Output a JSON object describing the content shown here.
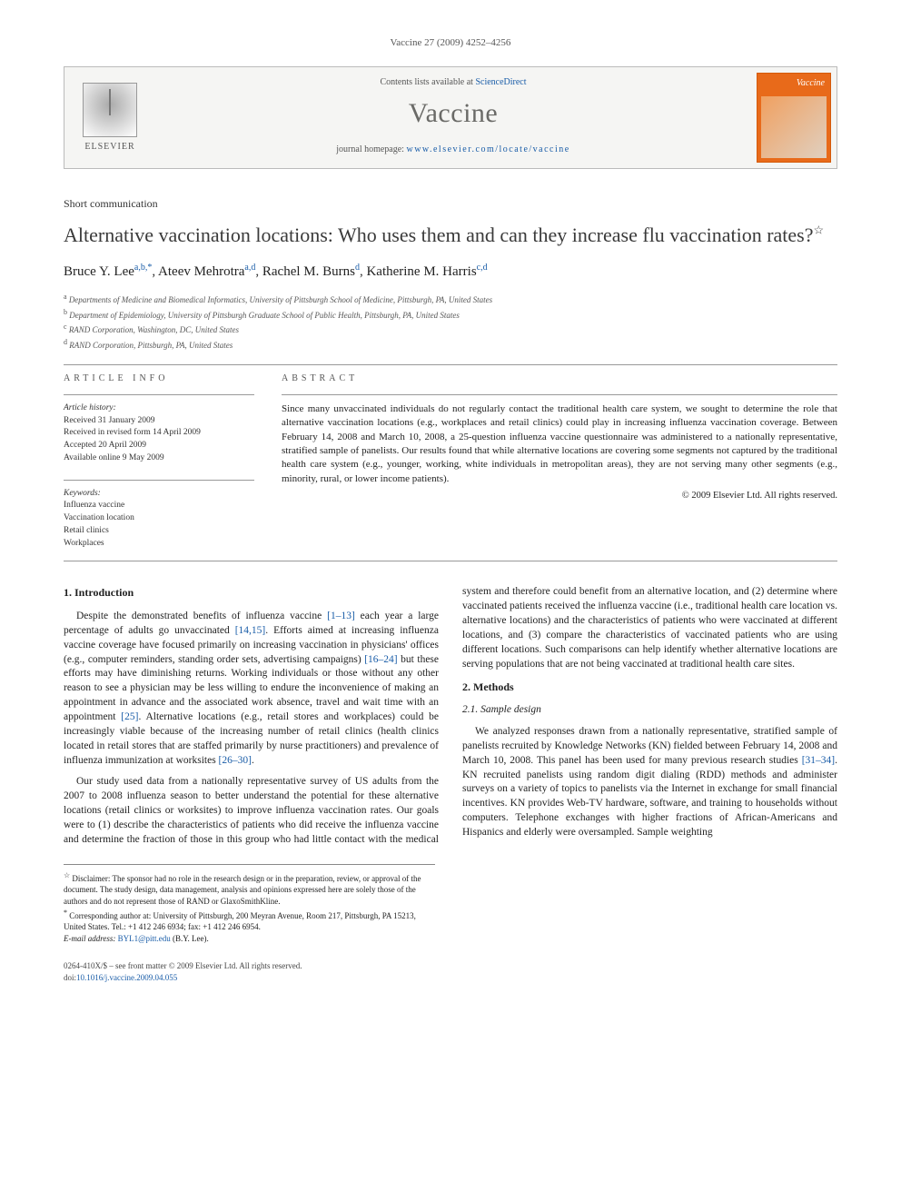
{
  "header": {
    "citation": "Vaccine 27 (2009) 4252–4256"
  },
  "journal_box": {
    "publisher": "ELSEVIER",
    "availability_prefix": "Contents lists available at ",
    "availability_link": "ScienceDirect",
    "journal_name": "Vaccine",
    "homepage_prefix": "journal homepage: ",
    "homepage_url": "www.elsevier.com/locate/vaccine",
    "cover_label": "Vaccine"
  },
  "article": {
    "type": "Short communication",
    "title": "Alternative vaccination locations: Who uses them and can they increase flu vaccination rates?",
    "title_footnote_mark": "☆",
    "authors": [
      {
        "name": "Bruce Y. Lee",
        "aff": "a,b,",
        "corr": "*"
      },
      {
        "name": "Ateev Mehrotra",
        "aff": "a,d"
      },
      {
        "name": "Rachel M. Burns",
        "aff": "d"
      },
      {
        "name": "Katherine M. Harris",
        "aff": "c,d"
      }
    ],
    "affiliations": [
      {
        "sup": "a",
        "text": "Departments of Medicine and Biomedical Informatics, University of Pittsburgh School of Medicine, Pittsburgh, PA, United States"
      },
      {
        "sup": "b",
        "text": "Department of Epidemiology, University of Pittsburgh Graduate School of Public Health, Pittsburgh, PA, United States"
      },
      {
        "sup": "c",
        "text": "RAND Corporation, Washington, DC, United States"
      },
      {
        "sup": "d",
        "text": "RAND Corporation, Pittsburgh, PA, United States"
      }
    ]
  },
  "info": {
    "label": "article info",
    "history_label": "Article history:",
    "history": [
      "Received 31 January 2009",
      "Received in revised form 14 April 2009",
      "Accepted 20 April 2009",
      "Available online 9 May 2009"
    ],
    "keywords_label": "Keywords:",
    "keywords": [
      "Influenza vaccine",
      "Vaccination location",
      "Retail clinics",
      "Workplaces"
    ]
  },
  "abstract": {
    "label": "abstract",
    "text": "Since many unvaccinated individuals do not regularly contact the traditional health care system, we sought to determine the role that alternative vaccination locations (e.g., workplaces and retail clinics) could play in increasing influenza vaccination coverage. Between February 14, 2008 and March 10, 2008, a 25-question influenza vaccine questionnaire was administered to a nationally representative, stratified sample of panelists. Our results found that while alternative locations are covering some segments not captured by the traditional health care system (e.g., younger, working, white individuals in metropolitan areas), they are not serving many other segments (e.g., minority, rural, or lower income patients).",
    "copyright": "© 2009 Elsevier Ltd. All rights reserved."
  },
  "sections": {
    "s1_title": "1.  Introduction",
    "s1_p1a": "Despite the demonstrated benefits of influenza vaccine ",
    "s1_r1": "[1–13]",
    "s1_p1b": " each year a large percentage of adults go unvaccinated ",
    "s1_r2": "[14,15]",
    "s1_p1c": ". Efforts aimed at increasing influenza vaccine coverage have focused primarily on increasing vaccination in physicians' offices (e.g., computer reminders, standing order sets, advertising campaigns) ",
    "s1_r3": "[16–24]",
    "s1_p1d": " but these efforts may have diminishing returns. Working individuals or those without any other reason to see a physician may be less willing to endure the inconvenience of making an appointment in advance and the associated work absence, travel and wait time with an appointment ",
    "s1_r4": "[25]",
    "s1_p1e": ". Alternative locations (e.g., retail stores and workplaces) could be increasingly viable because of the increasing number of retail clinics (health clinics located in retail stores that are staffed primarily by nurse practitioners) and prevalence of influenza immunization at worksites ",
    "s1_r5": "[26–30]",
    "s1_p1f": ".",
    "s1_p2": "Our study used data from a nationally representative survey of US adults from the 2007 to 2008 influenza season to better understand the potential for these alternative locations (retail clinics or worksites) to improve influenza vaccination rates. Our goals were to (1) describe the characteristics of patients who did receive the influenza vaccine and determine the fraction of those in this group who had little contact with the medical system and therefore could benefit from an alternative location, and (2) determine where vaccinated patients received the influenza vaccine (i.e., traditional health care location vs. alternative locations) and the characteristics of patients who were vaccinated at different locations, and (3) compare the characteristics of vaccinated patients who are using different locations. Such comparisons can help identify whether alternative locations are serving populations that are not being vaccinated at traditional health care sites.",
    "s2_title": "2.  Methods",
    "s21_title": "2.1.  Sample design",
    "s21_p1a": "We analyzed responses drawn from a nationally representative, stratified sample of panelists recruited by Knowledge Networks (KN) fielded between February 14, 2008 and March 10, 2008. This panel has been used for many previous research studies ",
    "s21_r1": "[31–34]",
    "s21_p1b": ". KN recruited panelists using random digit dialing (RDD) methods and administer surveys on a variety of topics to panelists via the Internet in exchange for small financial incentives. KN provides Web-TV hardware, software, and training to households without computers. Telephone exchanges with higher fractions of African-Americans and Hispanics and elderly were oversampled. Sample weighting"
  },
  "footnotes": {
    "disclaimer_mark": "☆",
    "disclaimer": " Disclaimer: The sponsor had no role in the research design or in the preparation, review, or approval of the document. The study design, data management, analysis and opinions expressed here are solely those of the authors and do not represent those of RAND or GlaxoSmithKline.",
    "corr_mark": "*",
    "corr": " Corresponding author at: University of Pittsburgh, 200 Meyran Avenue, Room 217, Pittsburgh, PA 15213, United States. Tel.: +1 412 246 6934; fax: +1 412 246 6954.",
    "email_label": "E-mail address: ",
    "email": "BYL1@pitt.edu",
    "email_suffix": " (B.Y. Lee)."
  },
  "footer": {
    "line1": "0264-410X/$ – see front matter © 2009 Elsevier Ltd. All rights reserved.",
    "doi_label": "doi:",
    "doi": "10.1016/j.vaccine.2009.04.055"
  },
  "colors": {
    "link": "#1a5da8",
    "cover_bg": "#e86a1a",
    "rule": "#999999",
    "text": "#222222",
    "muted": "#555555"
  }
}
